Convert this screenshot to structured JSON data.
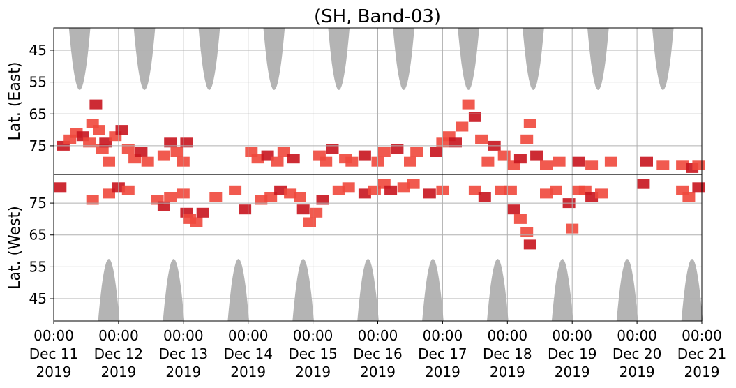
{
  "chart_data": {
    "type": "heatmap",
    "title": "(SH, Band-03)",
    "ylabel_top": "Lat. (East)",
    "ylabel_bottom": "Lat. (West)",
    "x_range": [
      "2019-12-11 00:00",
      "2019-12-21 00:00"
    ],
    "x_ticks": [
      {
        "time": "00:00",
        "date": "Dec 11",
        "year": "2019"
      },
      {
        "time": "00:00",
        "date": "Dec 12",
        "year": "2019"
      },
      {
        "time": "00:00",
        "date": "Dec 13",
        "year": "2019"
      },
      {
        "time": "00:00",
        "date": "Dec 14",
        "year": "2019"
      },
      {
        "time": "00:00",
        "date": "Dec 15",
        "year": "2019"
      },
      {
        "time": "00:00",
        "date": "Dec 16",
        "year": "2019"
      },
      {
        "time": "00:00",
        "date": "Dec 17",
        "year": "2019"
      },
      {
        "time": "00:00",
        "date": "Dec 18",
        "year": "2019"
      },
      {
        "time": "00:00",
        "date": "Dec 19",
        "year": "2019"
      },
      {
        "time": "00:00",
        "date": "Dec 20",
        "year": "2019"
      },
      {
        "time": "00:00",
        "date": "Dec 21",
        "year": "2019"
      }
    ],
    "y_ticks_east": [
      "45",
      "55",
      "65",
      "75"
    ],
    "y_ticks_west": [
      "75",
      "65",
      "55",
      "45"
    ],
    "y_range_east": [
      38,
      84
    ],
    "y_range_west": [
      84,
      38
    ],
    "grid": true,
    "colors": {
      "activity_high": "#c8141e",
      "activity_low": "#f0483c",
      "daylight": "#b4b4b4",
      "grid": "#b0b0b0"
    },
    "daylight_east_centers": [
      0.4,
      1.4,
      2.4,
      3.4,
      4.4,
      5.4,
      6.4,
      7.4,
      8.4,
      9.4
    ],
    "daylight_west_centers": [
      0.85,
      1.85,
      2.85,
      3.85,
      4.85,
      5.85,
      6.85,
      7.85,
      8.85,
      9.85
    ],
    "daylight_half_width_days": 0.165,
    "daylight_min_lat": 57.5,
    "series": [
      {
        "hemisphere": "east",
        "points": [
          [
            0.15,
            75
          ],
          [
            0.25,
            73
          ],
          [
            0.35,
            71
          ],
          [
            0.45,
            72
          ],
          [
            0.55,
            74
          ],
          [
            0.6,
            68
          ],
          [
            0.65,
            62
          ],
          [
            0.7,
            70
          ],
          [
            0.75,
            76
          ],
          [
            0.8,
            74
          ],
          [
            0.85,
            80
          ],
          [
            0.95,
            72
          ],
          [
            1.05,
            70
          ],
          [
            1.15,
            76
          ],
          [
            1.25,
            79
          ],
          [
            1.35,
            77
          ],
          [
            1.45,
            80
          ],
          [
            1.7,
            78
          ],
          [
            1.8,
            74
          ],
          [
            1.9,
            77
          ],
          [
            2.0,
            80
          ],
          [
            2.05,
            74
          ],
          [
            3.05,
            77
          ],
          [
            3.15,
            79
          ],
          [
            3.3,
            78
          ],
          [
            3.45,
            80
          ],
          [
            3.55,
            77
          ],
          [
            3.7,
            79
          ],
          [
            4.1,
            78
          ],
          [
            4.2,
            80
          ],
          [
            4.3,
            76
          ],
          [
            4.5,
            79
          ],
          [
            4.6,
            80
          ],
          [
            4.8,
            78
          ],
          [
            5.0,
            80
          ],
          [
            5.1,
            77
          ],
          [
            5.3,
            76
          ],
          [
            5.5,
            80
          ],
          [
            5.6,
            77
          ],
          [
            5.9,
            77
          ],
          [
            6.0,
            74
          ],
          [
            6.1,
            72
          ],
          [
            6.2,
            74
          ],
          [
            6.3,
            69
          ],
          [
            6.4,
            62
          ],
          [
            6.5,
            66
          ],
          [
            6.6,
            73
          ],
          [
            6.7,
            80
          ],
          [
            6.8,
            75
          ],
          [
            6.95,
            78
          ],
          [
            7.1,
            81
          ],
          [
            7.2,
            79
          ],
          [
            7.3,
            73
          ],
          [
            7.35,
            68
          ],
          [
            7.45,
            78
          ],
          [
            7.6,
            81
          ],
          [
            7.8,
            80
          ],
          [
            8.1,
            80
          ],
          [
            8.3,
            81
          ],
          [
            8.6,
            80
          ],
          [
            9.15,
            80
          ],
          [
            9.4,
            81
          ],
          [
            9.7,
            81
          ],
          [
            9.85,
            82
          ],
          [
            9.95,
            81
          ]
        ]
      },
      {
        "hemisphere": "west",
        "points": [
          [
            0.1,
            80
          ],
          [
            0.6,
            76
          ],
          [
            0.85,
            78
          ],
          [
            1.0,
            80
          ],
          [
            1.15,
            79
          ],
          [
            1.6,
            76
          ],
          [
            1.7,
            74
          ],
          [
            1.8,
            77
          ],
          [
            2.0,
            78
          ],
          [
            2.05,
            72
          ],
          [
            2.1,
            70
          ],
          [
            2.2,
            69
          ],
          [
            2.3,
            72
          ],
          [
            2.5,
            77
          ],
          [
            2.8,
            79
          ],
          [
            2.95,
            73
          ],
          [
            3.2,
            76
          ],
          [
            3.35,
            77
          ],
          [
            3.5,
            79
          ],
          [
            3.65,
            78
          ],
          [
            3.8,
            77
          ],
          [
            3.85,
            73
          ],
          [
            3.95,
            69
          ],
          [
            4.05,
            72
          ],
          [
            4.15,
            76
          ],
          [
            4.4,
            79
          ],
          [
            4.55,
            80
          ],
          [
            4.8,
            78
          ],
          [
            4.95,
            79
          ],
          [
            5.1,
            81
          ],
          [
            5.2,
            79
          ],
          [
            5.4,
            80
          ],
          [
            5.55,
            81
          ],
          [
            5.8,
            78
          ],
          [
            6.0,
            79
          ],
          [
            6.5,
            79
          ],
          [
            6.65,
            77
          ],
          [
            6.9,
            79
          ],
          [
            7.05,
            79
          ],
          [
            7.1,
            73
          ],
          [
            7.2,
            70
          ],
          [
            7.3,
            66
          ],
          [
            7.35,
            62
          ],
          [
            7.6,
            78
          ],
          [
            7.75,
            79
          ],
          [
            7.95,
            75
          ],
          [
            8.1,
            79
          ],
          [
            8.2,
            79
          ],
          [
            8.3,
            77
          ],
          [
            8.45,
            78
          ],
          [
            8.0,
            67
          ],
          [
            9.1,
            81
          ],
          [
            9.7,
            79
          ],
          [
            9.8,
            77
          ],
          [
            9.95,
            80
          ]
        ]
      }
    ]
  }
}
